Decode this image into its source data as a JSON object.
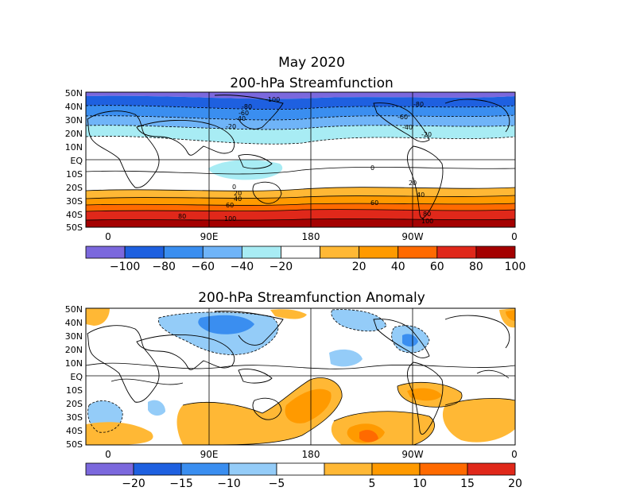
{
  "title": "May 2020",
  "panels": [
    {
      "title": "200-hPa Streamfunction",
      "lat_labels": [
        "50N",
        "40N",
        "30N",
        "20N",
        "10N",
        "EQ",
        "10S",
        "20S",
        "30S",
        "40S",
        "50S"
      ],
      "lon_labels": [
        "0",
        "90E",
        "180",
        "90W",
        "0"
      ],
      "colorbar": {
        "labels": [
          "-100",
          "-80",
          "-60",
          "-40",
          "-20",
          "20",
          "40",
          "60",
          "80",
          "100"
        ],
        "colors": [
          "#7b68dd",
          "#1e60e0",
          "#3a8ef0",
          "#6fb4f8",
          "#a8ecf4",
          "#ffffff",
          "#ffb835",
          "#ff9a00",
          "#ff6a00",
          "#e0281a",
          "#a40000"
        ]
      },
      "contour_labels": [
        "-100",
        "-80",
        "-60",
        "-40",
        "-20",
        "-20",
        "-40",
        "-60",
        "-80",
        "0",
        "0",
        "20",
        "20",
        "40",
        "40",
        "60",
        "60",
        "80",
        "80",
        "100",
        "100"
      ]
    },
    {
      "title": "200-hPa Streamfunction Anomaly",
      "lat_labels": [
        "50N",
        "40N",
        "30N",
        "20N",
        "10N",
        "EQ",
        "10S",
        "20S",
        "30S",
        "40S",
        "50S"
      ],
      "lon_labels": [
        "0",
        "90E",
        "180",
        "90W",
        "0"
      ],
      "colorbar": {
        "labels": [
          "-20",
          "-15",
          "-10",
          "-5",
          "5",
          "10",
          "15",
          "20"
        ],
        "colors": [
          "#7b68dd",
          "#1e60e0",
          "#3a8ef0",
          "#94ccf8",
          "#ffffff",
          "#ffb835",
          "#ff9a00",
          "#ff6a00",
          "#e0281a"
        ]
      }
    }
  ]
}
